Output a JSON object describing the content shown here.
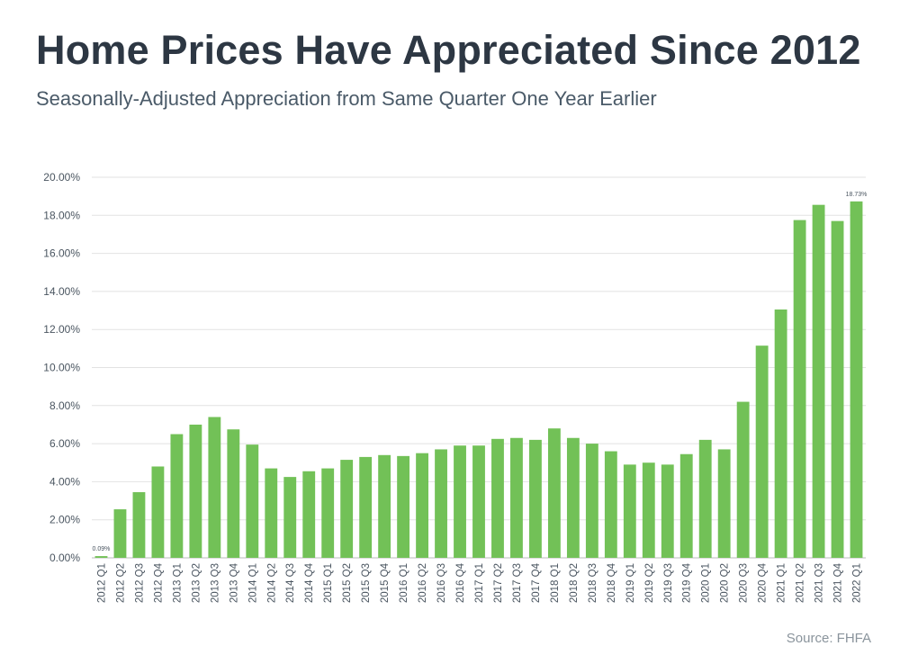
{
  "title": "Home Prices Have Appreciated Since 2012",
  "subtitle": "Seasonally-Adjusted Appreciation from Same Quarter One Year Earlier",
  "source": "Source: FHFA",
  "colors": {
    "bar": "#72c157",
    "grid": "#e2e2e2",
    "axis": "#bbbbbb",
    "title": "#2d3743"
  },
  "chart_data": {
    "type": "bar",
    "title": "Home Prices Have Appreciated Since 2012",
    "subtitle": "Seasonally-Adjusted Appreciation from Same Quarter One Year Earlier",
    "xlabel": "",
    "ylabel": "",
    "ylim": [
      0,
      20
    ],
    "y_ticks": [
      "0.00%",
      "2.00%",
      "4.00%",
      "6.00%",
      "8.00%",
      "10.00%",
      "12.00%",
      "14.00%",
      "16.00%",
      "18.00%",
      "20.00%"
    ],
    "grid": true,
    "categories": [
      "2012 Q1",
      "2012 Q2",
      "2012 Q3",
      "2012 Q4",
      "2013 Q1",
      "2013 Q2",
      "2013 Q3",
      "2013 Q4",
      "2014 Q1",
      "2014 Q2",
      "2014 Q3",
      "2014 Q4",
      "2015 Q1",
      "2015 Q2",
      "2015 Q3",
      "2015 Q4",
      "2016 Q1",
      "2016 Q2",
      "2016 Q3",
      "2016 Q4",
      "2017 Q1",
      "2017 Q2",
      "2017 Q3",
      "2017 Q4",
      "2018 Q1",
      "2018 Q2",
      "2018 Q3",
      "2018 Q4",
      "2019 Q1",
      "2019 Q2",
      "2019 Q3",
      "2019 Q4",
      "2020 Q1",
      "2020 Q2",
      "2020 Q3",
      "2020 Q4",
      "2021 Q1",
      "2021 Q2",
      "2021 Q3",
      "2021 Q4",
      "2022 Q1"
    ],
    "values": [
      0.09,
      2.55,
      3.45,
      4.8,
      6.5,
      7.0,
      7.4,
      6.75,
      5.95,
      4.7,
      4.25,
      4.55,
      4.7,
      5.15,
      5.3,
      5.4,
      5.35,
      5.5,
      5.7,
      5.9,
      5.9,
      6.25,
      6.3,
      6.2,
      6.8,
      6.3,
      6.0,
      5.6,
      4.9,
      5.0,
      4.9,
      5.45,
      6.2,
      5.7,
      8.2,
      11.15,
      13.05,
      17.75,
      18.55,
      17.7,
      18.73
    ],
    "data_labels": [
      {
        "index": 0,
        "text": "0.09%"
      },
      {
        "index": 40,
        "text": "18.73%"
      }
    ]
  }
}
